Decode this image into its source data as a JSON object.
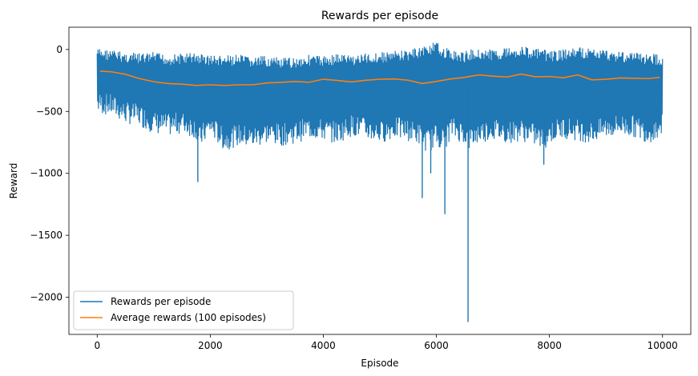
{
  "chart_data": {
    "type": "line",
    "title": "Rewards per episode",
    "xlabel": "Episode",
    "ylabel": "Reward",
    "xlim": [
      -500,
      10500
    ],
    "ylim": [
      -2300,
      180
    ],
    "xticks": [
      0,
      2000,
      4000,
      6000,
      8000,
      10000
    ],
    "xtick_labels": [
      "0",
      "2000",
      "4000",
      "6000",
      "8000",
      "10000"
    ],
    "yticks": [
      0,
      -500,
      -1000,
      -1500,
      -2000
    ],
    "ytick_labels": [
      "0",
      "−500",
      "−1000",
      "−1500",
      "−2000"
    ],
    "grid": false,
    "legend_position": "lower-left",
    "series": [
      {
        "name": "Rewards per episode",
        "color": "#1f77b4",
        "x": [
          0,
          250,
          500,
          750,
          1000,
          1250,
          1500,
          1750,
          1780,
          2000,
          2250,
          2500,
          2750,
          3000,
          3250,
          3500,
          3750,
          4000,
          4250,
          4500,
          4750,
          5000,
          5250,
          5500,
          5700,
          5750,
          5900,
          6000,
          6150,
          6250,
          6500,
          6560,
          6750,
          7000,
          7250,
          7500,
          7750,
          7900,
          8000,
          8250,
          8500,
          8750,
          9000,
          9250,
          9500,
          9750,
          10000
        ],
        "upper": [
          10,
          0,
          -20,
          -30,
          -20,
          -40,
          -30,
          -20,
          -30,
          -40,
          -50,
          -40,
          -60,
          -50,
          -70,
          -60,
          -40,
          -50,
          -30,
          -40,
          -30,
          -20,
          -10,
          0,
          20,
          30,
          50,
          60,
          20,
          0,
          -20,
          0,
          10,
          0,
          20,
          30,
          10,
          0,
          -10,
          0,
          20,
          10,
          0,
          -10,
          -20,
          -30,
          -40
        ],
        "lower": [
          -520,
          -540,
          -600,
          -620,
          -680,
          -700,
          -680,
          -720,
          -1070,
          -700,
          -820,
          -780,
          -800,
          -760,
          -780,
          -760,
          -720,
          -740,
          -760,
          -700,
          -730,
          -760,
          -720,
          -740,
          -770,
          -1200,
          -1000,
          -780,
          -1330,
          -720,
          -760,
          -2200,
          -760,
          -730,
          -760,
          -740,
          -780,
          -930,
          -760,
          -720,
          -740,
          -760,
          -720,
          -700,
          -710,
          -760,
          -700
        ]
      },
      {
        "name": "Average rewards (100 episodes)",
        "color": "#ff7f0e",
        "x": [
          50,
          250,
          500,
          750,
          1000,
          1250,
          1500,
          1750,
          2000,
          2250,
          2500,
          2750,
          3000,
          3250,
          3500,
          3750,
          4000,
          4250,
          4500,
          4750,
          5000,
          5250,
          5500,
          5750,
          6000,
          6250,
          6500,
          6750,
          7000,
          7250,
          7500,
          7750,
          8000,
          8250,
          8500,
          8750,
          9000,
          9250,
          9500,
          9750,
          9950
        ],
        "values": [
          -175,
          -180,
          -200,
          -235,
          -260,
          -275,
          -280,
          -290,
          -285,
          -290,
          -285,
          -285,
          -270,
          -265,
          -258,
          -265,
          -240,
          -250,
          -262,
          -248,
          -240,
          -238,
          -248,
          -275,
          -258,
          -238,
          -225,
          -205,
          -215,
          -222,
          -198,
          -220,
          -218,
          -228,
          -205,
          -245,
          -240,
          -230,
          -232,
          -235,
          -225
        ]
      }
    ]
  }
}
